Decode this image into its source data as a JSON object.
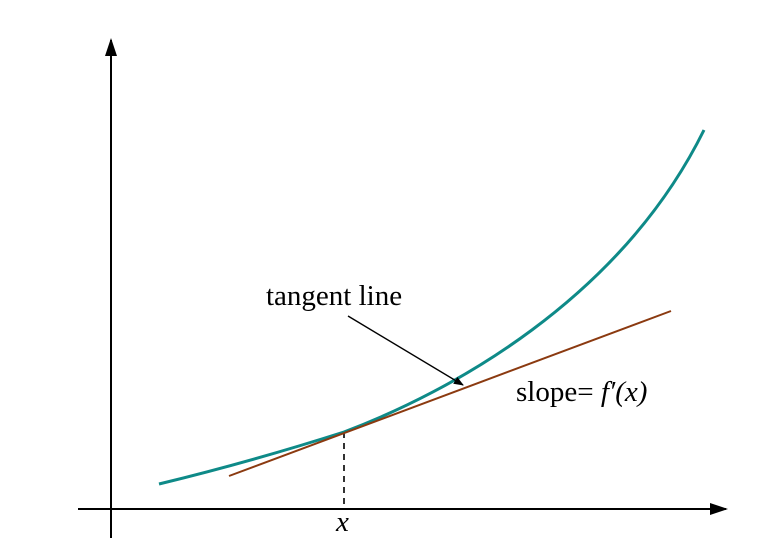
{
  "labels": {
    "tangent_line": "tangent line",
    "slope_prefix": "slope= ",
    "slope_expr": "f′(x)",
    "x_point": "x"
  },
  "colors": {
    "curve": "#0e8a88",
    "tangent": "#8b3a10",
    "axes": "#000000"
  }
}
